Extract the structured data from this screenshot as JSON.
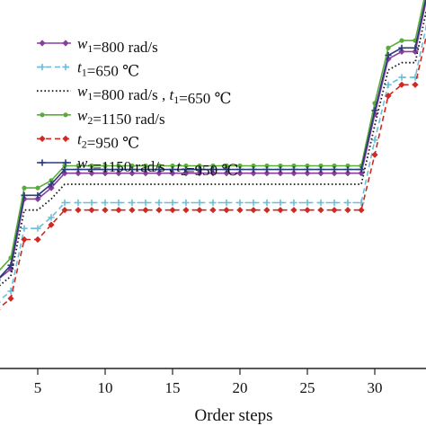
{
  "chart_data": {
    "type": "line",
    "title": "",
    "xlabel": "Order steps",
    "ylabel": "",
    "x_ticks": [
      "5",
      "10",
      "15",
      "20",
      "25",
      "30"
    ],
    "x_tick_values": [
      5,
      10,
      15,
      20,
      25,
      30
    ],
    "xlim": [
      2.2,
      33.8
    ],
    "ylim": [
      0,
      100
    ],
    "grid": false,
    "legend_position": "top-left",
    "x": [
      1,
      2,
      3,
      4,
      5,
      6,
      7,
      8,
      9,
      10,
      11,
      12,
      13,
      14,
      15,
      16,
      17,
      18,
      19,
      20,
      21,
      22,
      23,
      24,
      25,
      26,
      27,
      28,
      29,
      30,
      31,
      32,
      33,
      34
    ],
    "series": [
      {
        "name_parts": [
          {
            "t": "w",
            "i": true
          },
          {
            "t": "1",
            "sub": true
          },
          {
            "t": "=800 rad/s"
          }
        ],
        "color": "#8a3d9e",
        "dash": "solid",
        "marker": "diamond",
        "values": [
          20,
          24,
          27,
          46,
          46,
          49,
          53,
          53,
          53,
          53,
          53,
          53,
          53,
          53,
          53,
          53,
          53,
          53,
          53,
          53,
          53,
          53,
          53,
          53,
          53,
          53,
          53,
          53,
          53,
          69,
          84,
          86,
          86,
          103
        ]
      },
      {
        "name_parts": [
          {
            "t": "t",
            "i": true
          },
          {
            "t": "1",
            "sub": true
          },
          {
            "t": "=650 ℃"
          }
        ],
        "color": "#6bbfd8",
        "dash": "dashed",
        "marker": "plus",
        "values": [
          14,
          18,
          21,
          38,
          38,
          41,
          45,
          45,
          45,
          45,
          45,
          45,
          45,
          45,
          45,
          45,
          45,
          45,
          45,
          45,
          45,
          45,
          45,
          45,
          45,
          45,
          45,
          45,
          45,
          62,
          77,
          79,
          79,
          96
        ]
      },
      {
        "name_parts": [
          {
            "t": "w",
            "i": true
          },
          {
            "t": "1",
            "sub": true
          },
          {
            "t": "=800 rad/s , "
          },
          {
            "t": "t",
            "i": true
          },
          {
            "t": "1",
            "sub": true
          },
          {
            "t": "=650 ℃"
          }
        ],
        "color": "#1a1a1a",
        "dash": "dotted",
        "marker": "none",
        "values": [
          18,
          22,
          25,
          43,
          43,
          46,
          50,
          50,
          50,
          50,
          50,
          50,
          50,
          50,
          50,
          50,
          50,
          50,
          50,
          50,
          50,
          50,
          50,
          50,
          50,
          50,
          50,
          50,
          50,
          66,
          81,
          83,
          83,
          100
        ]
      },
      {
        "name_parts": [
          {
            "t": "w",
            "i": true
          },
          {
            "t": "2",
            "sub": true
          },
          {
            "t": "=1150 rad/s"
          }
        ],
        "color": "#5aac3a",
        "dash": "solid",
        "marker": "circle",
        "values": [
          22,
          26,
          30,
          49,
          49,
          51,
          55,
          55,
          55,
          55,
          55,
          55,
          55,
          55,
          55,
          55,
          55,
          55,
          55,
          55,
          55,
          55,
          55,
          55,
          55,
          55,
          55,
          55,
          55,
          72,
          87,
          89,
          89,
          106
        ]
      },
      {
        "name_parts": [
          {
            "t": "t",
            "i": true
          },
          {
            "t": "2",
            "sub": true
          },
          {
            "t": "=950 ℃"
          }
        ],
        "color": "#cc2a22",
        "dash": "dashed",
        "marker": "diamond",
        "values": [
          12,
          16,
          19,
          35,
          35,
          39,
          43,
          43,
          43,
          43,
          43,
          43,
          43,
          43,
          43,
          43,
          43,
          43,
          43,
          43,
          43,
          43,
          43,
          43,
          43,
          43,
          43,
          43,
          43,
          58,
          74,
          77,
          77,
          93
        ]
      },
      {
        "name_parts": [
          {
            "t": "w",
            "i": true
          },
          {
            "t": "2",
            "sub": true
          },
          {
            "t": "=1150 rad/s , "
          },
          {
            "t": "t",
            "i": true
          },
          {
            "t": "2",
            "sub": true
          },
          {
            "t": "=950 ℃"
          }
        ],
        "color": "#283a7a",
        "dash": "solid",
        "marker": "plus",
        "values": [
          20,
          24,
          28,
          47,
          47,
          50,
          54,
          54,
          54,
          54,
          54,
          54,
          54,
          54,
          54,
          54,
          54,
          54,
          54,
          54,
          54,
          54,
          54,
          54,
          54,
          54,
          54,
          54,
          54,
          70,
          85,
          87,
          87,
          104
        ]
      }
    ]
  }
}
